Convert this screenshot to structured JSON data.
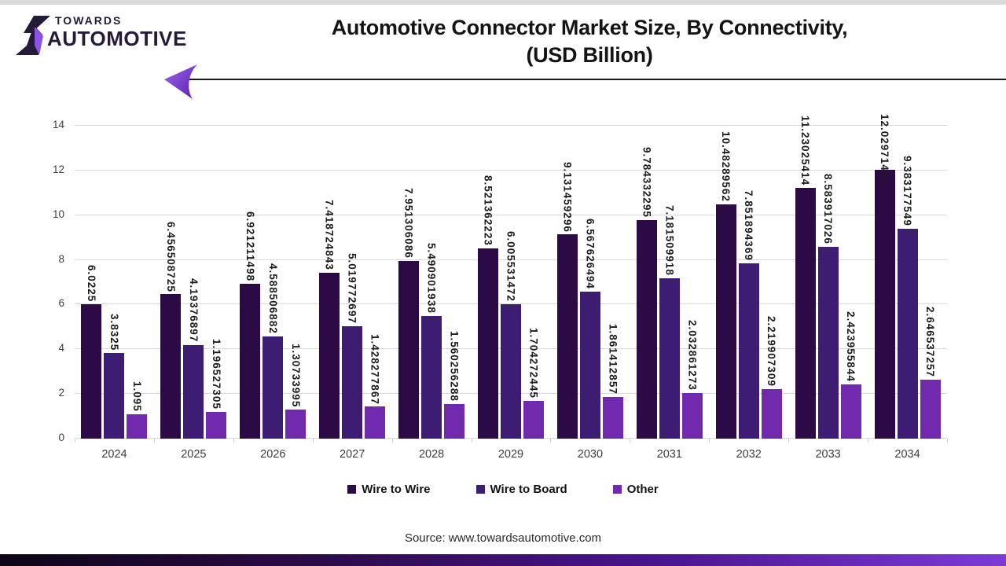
{
  "header": {
    "logo_line1": "TOWARDS",
    "logo_line2": "AUTOMOTIVE",
    "title_line1": "Automotive Connector Market Size, By Connectivity,",
    "title_line2": "(USD Billion)"
  },
  "chart_data": {
    "type": "bar",
    "title": "Automotive Connector Market Size, By Connectivity, (USD Billion)",
    "categories": [
      "2024",
      "2025",
      "2026",
      "2027",
      "2028",
      "2029",
      "2030",
      "2031",
      "2032",
      "2033",
      "2034"
    ],
    "series": [
      {
        "name": "Wire to Wire",
        "color": "#2b0a45",
        "values": [
          "6.0225",
          "6.456508725",
          "6.921211498",
          "7.418724843",
          "7.951306086",
          "8.521362223",
          "9.131459296",
          "9.784332295",
          "10.48289562",
          "11.23025414",
          "12.02971481"
        ]
      },
      {
        "name": "Wire to Board",
        "color": "#3d1d72",
        "values": [
          "3.8325",
          "4.19376897",
          "4.588506882",
          "5.019772697",
          "5.490901938",
          "6.005531472",
          "6.567626494",
          "7.181509918",
          "7.851894369",
          "8.583917026",
          "9.383177549"
        ]
      },
      {
        "name": "Other",
        "color": "#7129ae",
        "values": [
          "1.095",
          "1.196527305",
          "1.30733995",
          "1.428277867",
          "1.560256288",
          "1.704272445",
          "1.861412857",
          "2.032861273",
          "2.219907309",
          "2.423955844",
          "2.646537257"
        ]
      }
    ],
    "xlabel": "",
    "ylabel": "",
    "ylim": [
      0,
      14
    ],
    "ytick_step": 2,
    "grid": true,
    "legend_position": "bottom",
    "value_labels_rotated": true
  },
  "footer": {
    "source": "Source: www.towardsautomotive.com"
  }
}
